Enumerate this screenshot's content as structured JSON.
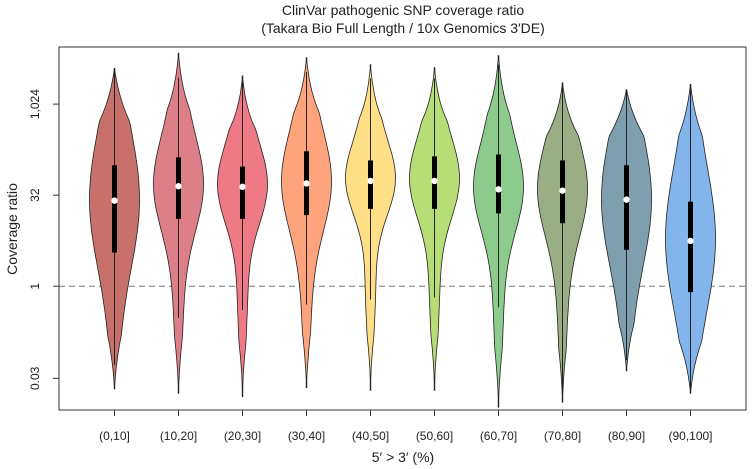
{
  "chart_data": {
    "type": "violin",
    "title": "ClinVar pathogenic SNP coverage ratio",
    "subtitle": "(Takara Bio Full Length / 10x Genomics 3′DE)",
    "xlabel": "5′ > 3′ (%)",
    "ylabel": "Coverage ratio",
    "y_scale": "log",
    "ylim": [
      0.009,
      9000
    ],
    "yticks": [
      {
        "value": 0.03,
        "label": "0.03"
      },
      {
        "value": 1,
        "label": "1"
      },
      {
        "value": 32,
        "label": "32"
      },
      {
        "value": 1024,
        "label": "1,024"
      }
    ],
    "reference_line": {
      "value": 1,
      "style": "dashed"
    },
    "categories": [
      "(0,10]",
      "(10,20]",
      "(20,30]",
      "(30,40]",
      "(40,50]",
      "(50,60]",
      "(60,70]",
      "(70,80]",
      "(80,90]",
      "(90,100]"
    ],
    "violins": [
      {
        "min": 0.02,
        "q1": 3.6,
        "median": 26,
        "q3": 100,
        "max": 4000,
        "whisker_low": 0.05,
        "whisker_high": 4000,
        "color": "#c8716b"
      },
      {
        "min": 0.017,
        "q1": 13,
        "median": 45,
        "q3": 135,
        "max": 7100,
        "whisker_low": 0.3,
        "whisker_high": 2800,
        "color": "#dc7f88"
      },
      {
        "min": 0.015,
        "q1": 13,
        "median": 44,
        "q3": 95,
        "max": 3000,
        "whisker_low": 0.4,
        "whisker_high": 3000,
        "color": "#ee7a86"
      },
      {
        "min": 0.021,
        "q1": 15,
        "median": 50,
        "q3": 170,
        "max": 6000,
        "whisker_low": 0.5,
        "whisker_high": 3500,
        "color": "#fea47c"
      },
      {
        "min": 0.019,
        "q1": 19,
        "median": 55,
        "q3": 120,
        "max": 4600,
        "whisker_low": 0.6,
        "whisker_high": 2700,
        "color": "#fedf86"
      },
      {
        "min": 0.019,
        "q1": 19,
        "median": 55,
        "q3": 140,
        "max": 4100,
        "whisker_low": 0.65,
        "whisker_high": 2700,
        "color": "#b8dd76"
      },
      {
        "min": 0.01,
        "q1": 16,
        "median": 40,
        "q3": 150,
        "max": 6500,
        "whisker_low": 0.45,
        "whisker_high": 4600,
        "color": "#8dcb8d"
      },
      {
        "min": 0.012,
        "q1": 11,
        "median": 38,
        "q3": 120,
        "max": 2300,
        "whisker_low": 0.013,
        "whisker_high": 2300,
        "color": "#9aae84"
      },
      {
        "min": 0.04,
        "q1": 4,
        "median": 27,
        "q3": 100,
        "max": 1780,
        "whisker_low": 0.06,
        "whisker_high": 1780,
        "color": "#7e9fae"
      },
      {
        "min": 0.017,
        "q1": 0.8,
        "median": 5.6,
        "q3": 25,
        "max": 2180,
        "whisker_low": 0.02,
        "whisker_high": 2180,
        "color": "#84b4ec"
      }
    ]
  }
}
